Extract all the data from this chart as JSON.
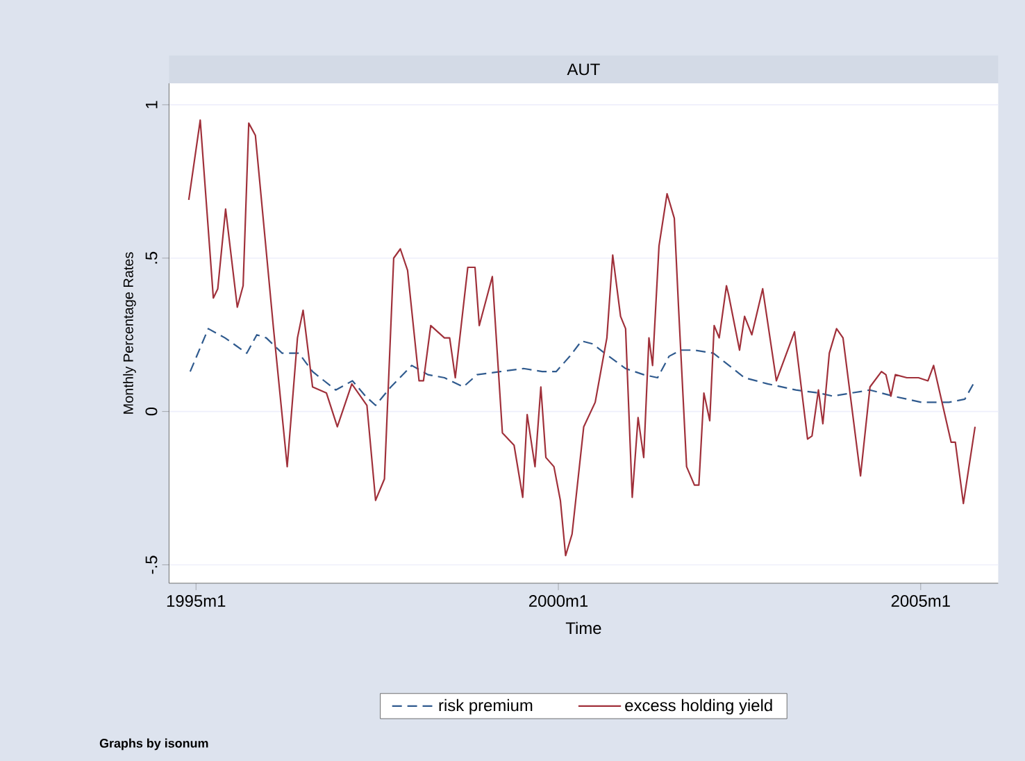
{
  "chart_data": {
    "type": "line",
    "title": "AUT",
    "xlabel": "Time",
    "ylabel": "Monthly Percentage Rates",
    "annotations": [
      "Graphs by isonum"
    ],
    "xlim": [
      "1994-08-17",
      "2006-01-26"
    ],
    "ylim": [
      -0.56,
      1.07
    ],
    "xticks": [
      {
        "value": "1995-01-01",
        "label": "1995m1"
      },
      {
        "value": "2000-01-01",
        "label": "2000m1"
      },
      {
        "value": "2005-01-01",
        "label": "2005m1"
      }
    ],
    "yticks": [
      {
        "value": -0.5,
        "label": "-.5"
      },
      0,
      {
        "value": 0.5,
        "label": ".5"
      },
      1
    ],
    "grid": "y",
    "legend": "bottom",
    "series": [
      {
        "name": "risk premium",
        "color": "#2f5a8e",
        "line_style": "dashed",
        "x": [
          "1994-12-02",
          "1995-03-02",
          "1995-05-25",
          "1995-09-13",
          "1995-11-03",
          "1995-12-20",
          "1996-03-09",
          "1996-06-02",
          "1996-08-10",
          "1996-12-05",
          "1997-02-28",
          "1997-05-03",
          "1997-06-23",
          "1997-09-09",
          "1997-12-23",
          "1998-03-13",
          "1998-06-05",
          "1998-09-09",
          "1998-11-17",
          "1999-03-13",
          "1999-07-08",
          "1999-10-11",
          "1999-12-20",
          "2000-02-28",
          "2000-04-26",
          "2000-06-23",
          "2000-08-21",
          "2000-12-05",
          "2001-03-05",
          "2001-05-14",
          "2001-07-11",
          "2001-09-09",
          "2001-11-17",
          "2002-02-21",
          "2002-04-19",
          "2002-07-26",
          "2002-11-21",
          "2003-04-11",
          "2003-08-07",
          "2003-10-15",
          "2004-01-15",
          "2004-04-19",
          "2004-08-14",
          "2005-01-04",
          "2005-05-21",
          "2005-08-10",
          "2005-10-01"
        ],
        "values": [
          0.13,
          0.27,
          0.24,
          0.19,
          0.25,
          0.24,
          0.19,
          0.19,
          0.13,
          0.07,
          0.1,
          0.05,
          0.02,
          0.08,
          0.15,
          0.12,
          0.11,
          0.08,
          0.12,
          0.13,
          0.14,
          0.13,
          0.13,
          0.18,
          0.23,
          0.22,
          0.19,
          0.14,
          0.12,
          0.11,
          0.18,
          0.2,
          0.2,
          0.19,
          0.16,
          0.11,
          0.09,
          0.07,
          0.06,
          0.05,
          0.06,
          0.07,
          0.05,
          0.03,
          0.03,
          0.04,
          0.1
        ]
      },
      {
        "name": "excess holding yield",
        "color": "#a0303a",
        "line_style": "solid",
        "x": [
          "1994-11-25",
          "1995-01-22",
          "1995-03-27",
          "1995-04-19",
          "1995-05-28",
          "1995-07-26",
          "1995-08-25",
          "1995-09-23",
          "1995-10-26",
          "1996-01-26",
          "1996-04-04",
          "1996-05-25",
          "1996-06-23",
          "1996-08-10",
          "1996-10-19",
          "1996-12-13",
          "1997-02-25",
          "1997-05-10",
          "1997-06-23",
          "1997-08-07",
          "1997-09-23",
          "1997-10-26",
          "1997-12-02",
          "1998-01-29",
          "1998-02-21",
          "1998-03-27",
          "1998-06-05",
          "1998-07-01",
          "1998-07-29",
          "1998-10-01",
          "1998-11-07",
          "1998-11-28",
          "1999-02-03",
          "1999-03-23",
          "1999-05-21",
          "1999-07-04",
          "1999-07-26",
          "1999-09-05",
          "1999-10-04",
          "1999-10-29",
          "1999-12-09",
          "2000-01-11",
          "2000-02-07",
          "2000-03-09",
          "2000-05-07",
          "2000-07-04",
          "2000-09-02",
          "2000-10-01",
          "2000-11-10",
          "2000-12-05",
          "2001-01-08",
          "2001-02-07",
          "2001-03-05",
          "2001-04-01",
          "2001-04-19",
          "2001-05-21",
          "2001-07-01",
          "2001-08-07",
          "2001-08-28",
          "2001-10-08",
          "2001-11-17",
          "2001-12-09",
          "2002-01-04",
          "2002-02-03",
          "2002-02-25",
          "2002-03-20",
          "2002-04-26",
          "2002-05-07",
          "2002-07-01",
          "2002-07-26",
          "2002-09-02",
          "2002-10-26",
          "2003-01-04",
          "2003-04-04",
          "2003-06-09",
          "2003-07-01",
          "2003-08-03",
          "2003-08-25",
          "2003-09-27",
          "2003-11-03",
          "2003-12-05",
          "2004-03-02",
          "2004-04-19",
          "2004-06-16",
          "2004-07-08",
          "2004-08-03",
          "2004-08-25",
          "2004-10-22",
          "2004-12-20",
          "2005-02-07",
          "2005-03-05",
          "2005-06-02",
          "2005-06-23",
          "2005-08-03",
          "2005-10-01"
        ],
        "values": [
          0.69,
          0.95,
          0.37,
          0.4,
          0.66,
          0.34,
          0.41,
          0.94,
          0.9,
          0.27,
          -0.18,
          0.24,
          0.33,
          0.08,
          0.06,
          -0.05,
          0.09,
          0.02,
          -0.29,
          -0.22,
          0.5,
          0.53,
          0.46,
          0.1,
          0.1,
          0.28,
          0.24,
          0.24,
          0.11,
          0.47,
          0.47,
          0.28,
          0.44,
          -0.07,
          -0.11,
          -0.28,
          -0.01,
          -0.18,
          0.08,
          -0.15,
          -0.18,
          -0.29,
          -0.47,
          -0.4,
          -0.05,
          0.03,
          0.24,
          0.51,
          0.31,
          0.27,
          -0.28,
          -0.02,
          -0.15,
          0.24,
          0.15,
          0.54,
          0.71,
          0.63,
          0.34,
          -0.18,
          -0.24,
          -0.24,
          0.06,
          -0.03,
          0.28,
          0.24,
          0.41,
          0.38,
          0.2,
          0.31,
          0.25,
          0.4,
          0.1,
          0.26,
          -0.09,
          -0.08,
          0.07,
          -0.04,
          0.19,
          0.27,
          0.24,
          -0.21,
          0.08,
          0.13,
          0.12,
          0.05,
          0.12,
          0.11,
          0.11,
          0.1,
          0.15,
          -0.1,
          -0.1,
          -0.3,
          -0.05
        ]
      }
    ]
  }
}
